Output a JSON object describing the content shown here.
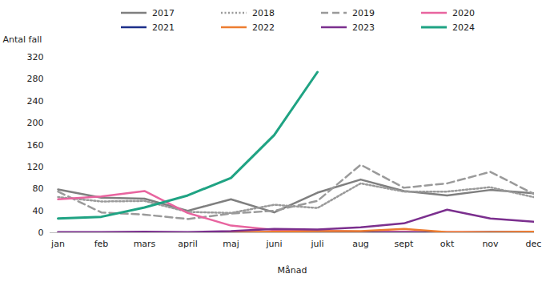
{
  "chart_data": {
    "type": "line",
    "x_label": "Månad",
    "y_label": "Antal fall",
    "categories": [
      "jan",
      "feb",
      "mars",
      "april",
      "maj",
      "juni",
      "juli",
      "aug",
      "sept",
      "okt",
      "nov",
      "dec"
    ],
    "ylim": [
      0,
      320
    ],
    "yticks": [
      0,
      40,
      80,
      120,
      160,
      200,
      240,
      280,
      320
    ],
    "grid": false,
    "series": [
      {
        "name": "2017",
        "color": "#7f7f7f",
        "line_style": "solid",
        "values": [
          79,
          64,
          62,
          40,
          61,
          37,
          73,
          97,
          76,
          68,
          78,
          72
        ]
      },
      {
        "name": "2018",
        "color": "#9a9a9a",
        "line_style": "dotted",
        "values": [
          65,
          57,
          58,
          38,
          36,
          51,
          45,
          90,
          75,
          75,
          83,
          65
        ]
      },
      {
        "name": "2019",
        "color": "#9a9a9a",
        "line_style": "dashed",
        "values": [
          75,
          37,
          33,
          25,
          35,
          40,
          58,
          124,
          82,
          90,
          111,
          71
        ]
      },
      {
        "name": "2020",
        "color": "#e8649f",
        "line_style": "solid",
        "values": [
          61,
          66,
          76,
          36,
          13,
          5,
          4,
          2,
          2,
          1,
          1,
          1
        ]
      },
      {
        "name": "2021",
        "color": "#1c2f8a",
        "line_style": "solid",
        "values": [
          0,
          0,
          0,
          0,
          0,
          0,
          0,
          0,
          0,
          0,
          1,
          1
        ]
      },
      {
        "name": "2022",
        "color": "#ed7d31",
        "line_style": "solid",
        "values": [
          0,
          0,
          0,
          0,
          1,
          2,
          3,
          3,
          7,
          1,
          1,
          2
        ]
      },
      {
        "name": "2023",
        "color": "#7b2f8e",
        "line_style": "solid",
        "values": [
          1,
          1,
          2,
          1,
          3,
          7,
          6,
          10,
          17,
          42,
          26,
          20
        ]
      },
      {
        "name": "2024",
        "color": "#1fa383",
        "line_style": "solid",
        "values": [
          26,
          29,
          46,
          68,
          100,
          178,
          293,
          null,
          null,
          null,
          null,
          null
        ]
      }
    ]
  }
}
